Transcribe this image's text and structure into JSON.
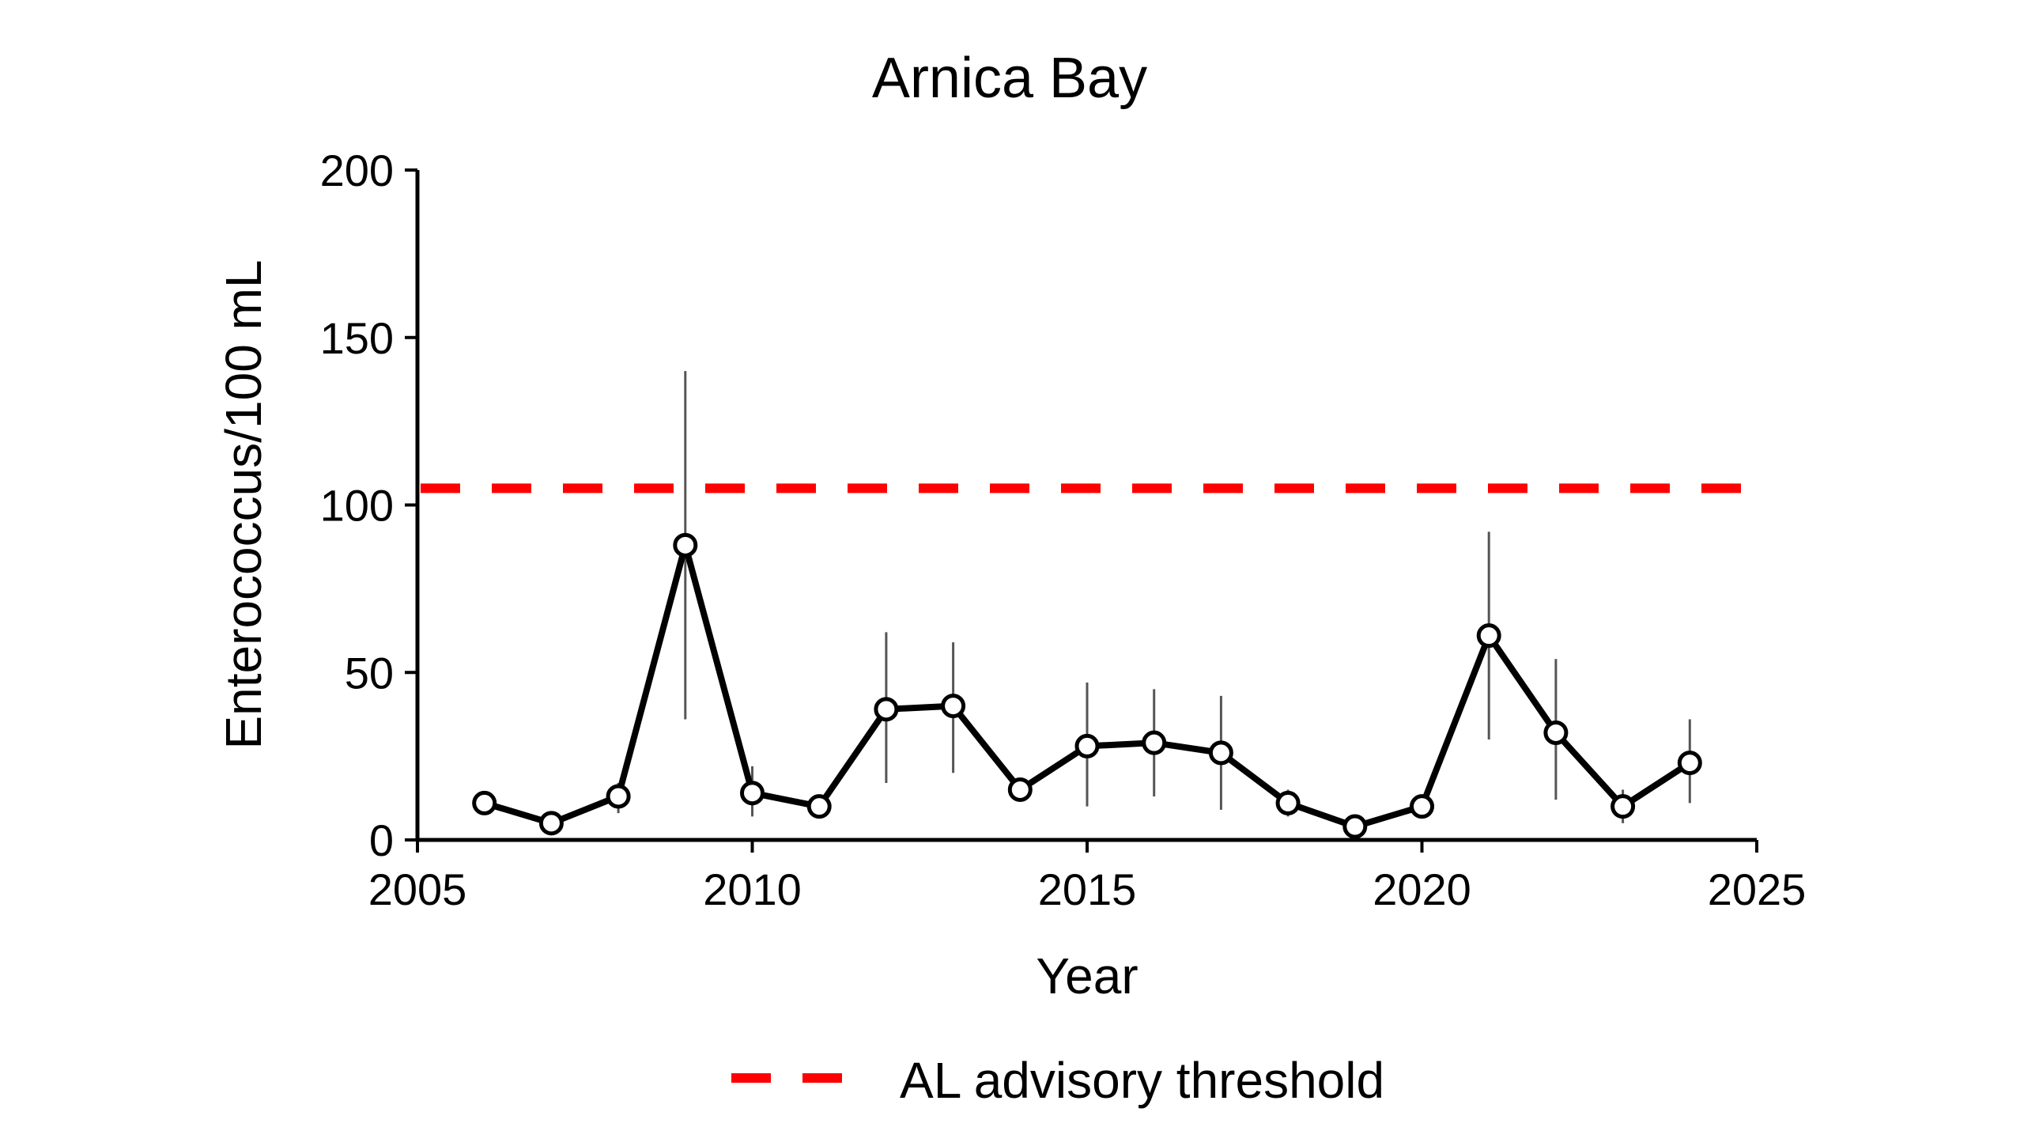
{
  "chart_data": {
    "type": "line",
    "title": "Arnica Bay",
    "xlabel": "Year",
    "ylabel": "Enterococcus/100 mL",
    "xlim": [
      2005,
      2025
    ],
    "ylim": [
      0,
      200
    ],
    "xticks": [
      2005,
      2010,
      2015,
      2020,
      2025
    ],
    "yticks": [
      0,
      50,
      100,
      150,
      200
    ],
    "grid": false,
    "legend_position": "bottom-center",
    "series": [
      {
        "x": [
          2006,
          2007,
          2008,
          2009,
          2010,
          2011,
          2012,
          2013,
          2014,
          2015,
          2016,
          2017,
          2018,
          2019,
          2020,
          2021,
          2022,
          2023,
          2024
        ],
        "y": [
          11,
          5,
          13,
          88,
          14,
          10,
          39,
          40,
          15,
          28,
          29,
          26,
          11,
          4,
          10,
          61,
          32,
          10,
          23
        ],
        "error_low": [
          11,
          5,
          8,
          36,
          7,
          10,
          17,
          20,
          12,
          10,
          13,
          9,
          7,
          4,
          10,
          30,
          12,
          5,
          11
        ],
        "error_high": [
          11,
          5,
          17,
          140,
          22,
          10,
          62,
          59,
          18,
          47,
          45,
          43,
          15,
          4,
          10,
          92,
          54,
          15,
          36
        ],
        "color": "#000000",
        "marker_fill": "#ffffff",
        "error_color": "#555555"
      }
    ],
    "reference_lines": [
      {
        "name": "AL advisory threshold",
        "y": 105,
        "color": "#ff0000",
        "style": "dashed"
      }
    ]
  }
}
